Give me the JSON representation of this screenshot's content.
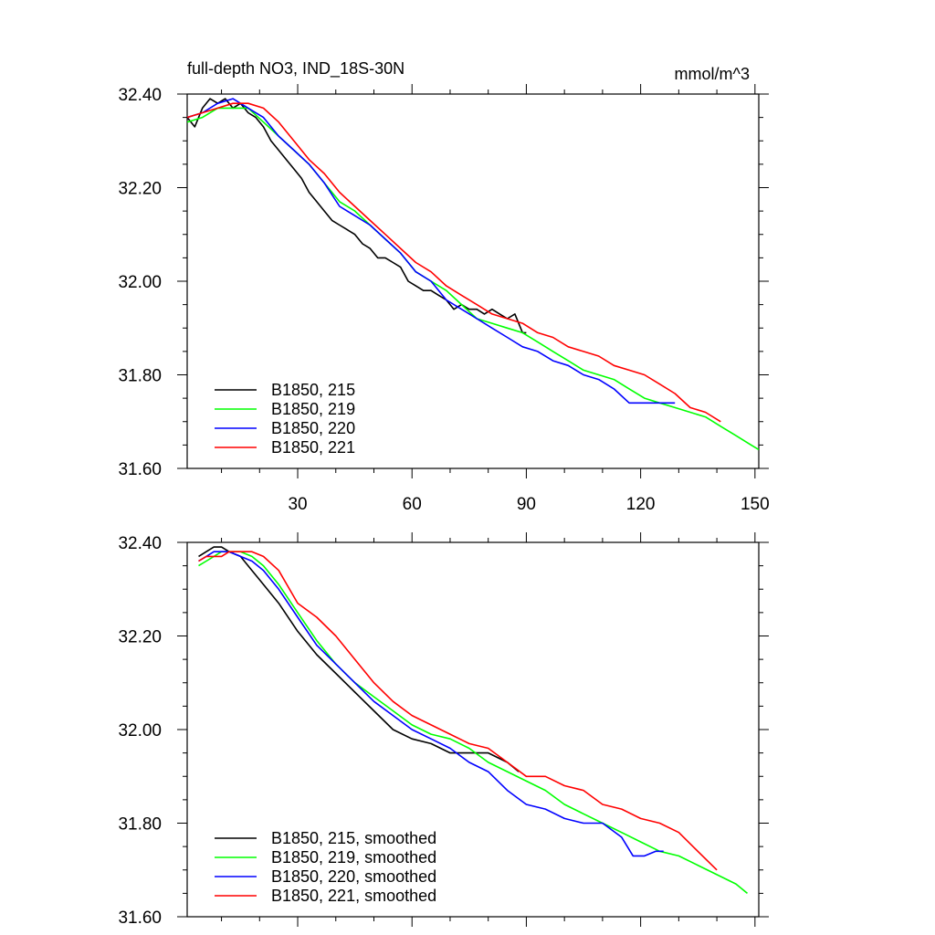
{
  "chart_data": [
    {
      "type": "line",
      "title": "full-depth NO3, IND_18S-30N",
      "units": "mmol/m^3",
      "xlim": [
        1,
        151
      ],
      "ylim": [
        31.6,
        32.4
      ],
      "xticks": [
        30,
        60,
        90,
        120,
        150
      ],
      "xtick_labels": [
        "30",
        "60",
        "90",
        "120",
        "150"
      ],
      "yticks": [
        31.6,
        31.8,
        32.0,
        32.2,
        32.4
      ],
      "ytick_labels": [
        "31.60",
        "31.80",
        "32.00",
        "32.20",
        "32.40"
      ],
      "legend_position": "bottom-left",
      "series": [
        {
          "name": "B1850, 215",
          "color": "#000000",
          "x": [
            1,
            3,
            5,
            7,
            9,
            11,
            13,
            15,
            17,
            19,
            21,
            23,
            25,
            27,
            29,
            31,
            33,
            35,
            37,
            39,
            41,
            43,
            45,
            47,
            49,
            51,
            53,
            55,
            57,
            59,
            61,
            63,
            65,
            67,
            69,
            71,
            73,
            75,
            77,
            79,
            81,
            83,
            85,
            87,
            89,
            90
          ],
          "y": [
            32.35,
            32.33,
            32.37,
            32.39,
            32.38,
            32.39,
            32.37,
            32.38,
            32.36,
            32.35,
            32.33,
            32.3,
            32.28,
            32.26,
            32.24,
            32.22,
            32.19,
            32.17,
            32.15,
            32.13,
            32.12,
            32.11,
            32.1,
            32.08,
            32.07,
            32.05,
            32.05,
            32.04,
            32.03,
            32.0,
            31.99,
            31.98,
            31.98,
            31.97,
            31.96,
            31.94,
            31.95,
            31.94,
            31.94,
            31.93,
            31.94,
            31.93,
            31.92,
            31.93,
            31.89,
            31.89
          ]
        },
        {
          "name": "B1850, 219",
          "color": "#00ff00",
          "x": [
            1,
            5,
            9,
            13,
            17,
            21,
            25,
            29,
            33,
            37,
            41,
            45,
            49,
            53,
            57,
            61,
            65,
            69,
            73,
            77,
            81,
            85,
            89,
            93,
            97,
            101,
            105,
            109,
            113,
            117,
            121,
            125,
            129,
            133,
            137,
            141,
            145,
            149,
            151
          ],
          "y": [
            32.34,
            32.35,
            32.37,
            32.37,
            32.37,
            32.34,
            32.31,
            32.28,
            32.25,
            32.21,
            32.17,
            32.15,
            32.12,
            32.09,
            32.06,
            32.02,
            32.0,
            31.98,
            31.95,
            31.92,
            31.91,
            31.9,
            31.89,
            31.87,
            31.85,
            31.83,
            31.81,
            31.8,
            31.79,
            31.77,
            31.75,
            31.74,
            31.73,
            31.72,
            31.71,
            31.69,
            31.67,
            31.65,
            31.64
          ]
        },
        {
          "name": "B1850, 220",
          "color": "#0000ff",
          "x": [
            1,
            5,
            9,
            13,
            17,
            21,
            25,
            29,
            33,
            37,
            41,
            45,
            49,
            53,
            57,
            61,
            65,
            69,
            73,
            77,
            81,
            85,
            89,
            93,
            97,
            101,
            105,
            109,
            113,
            117,
            121,
            125,
            129
          ],
          "y": [
            32.35,
            32.36,
            32.38,
            32.39,
            32.37,
            32.35,
            32.31,
            32.28,
            32.25,
            32.21,
            32.16,
            32.14,
            32.12,
            32.09,
            32.06,
            32.02,
            32.0,
            31.96,
            31.94,
            31.92,
            31.9,
            31.88,
            31.86,
            31.85,
            31.83,
            31.82,
            31.8,
            31.79,
            31.77,
            31.74,
            31.74,
            31.74,
            31.74
          ]
        },
        {
          "name": "B1850, 221",
          "color": "#ff0000",
          "x": [
            1,
            5,
            9,
            13,
            17,
            21,
            25,
            29,
            33,
            37,
            41,
            45,
            49,
            53,
            57,
            61,
            65,
            69,
            73,
            77,
            81,
            85,
            89,
            93,
            97,
            101,
            105,
            109,
            113,
            117,
            121,
            125,
            129,
            133,
            137,
            141
          ],
          "y": [
            32.35,
            32.36,
            32.37,
            32.38,
            32.38,
            32.37,
            32.34,
            32.3,
            32.26,
            32.23,
            32.19,
            32.16,
            32.13,
            32.1,
            32.07,
            32.04,
            32.02,
            31.99,
            31.97,
            31.95,
            31.93,
            31.92,
            31.91,
            31.89,
            31.88,
            31.86,
            31.85,
            31.84,
            31.82,
            31.81,
            31.8,
            31.78,
            31.76,
            31.73,
            31.72,
            31.7
          ]
        }
      ]
    },
    {
      "type": "line",
      "title": "",
      "units": "",
      "xlim": [
        1,
        151
      ],
      "ylim": [
        31.6,
        32.4
      ],
      "xticks": [
        30,
        60,
        90,
        120,
        150
      ],
      "xtick_labels": [],
      "yticks": [
        31.6,
        31.8,
        32.0,
        32.2,
        32.4
      ],
      "ytick_labels": [
        "31.60",
        "31.80",
        "32.00",
        "32.20",
        "32.40"
      ],
      "legend_position": "bottom-left",
      "series": [
        {
          "name": "B1850, 215, smoothed",
          "color": "#000000",
          "x": [
            4,
            6,
            8,
            10,
            12,
            15,
            18,
            21,
            25,
            30,
            35,
            40,
            45,
            50,
            55,
            60,
            65,
            70,
            75,
            80,
            85,
            88
          ],
          "y": [
            32.37,
            32.38,
            32.39,
            32.39,
            32.38,
            32.37,
            32.34,
            32.31,
            32.27,
            32.21,
            32.16,
            32.12,
            32.08,
            32.04,
            32.0,
            31.98,
            31.97,
            31.95,
            31.95,
            31.95,
            31.93,
            31.91
          ]
        },
        {
          "name": "B1850, 219, smoothed",
          "color": "#00ff00",
          "x": [
            4,
            6,
            8,
            10,
            12,
            15,
            18,
            21,
            25,
            30,
            35,
            40,
            45,
            50,
            55,
            60,
            65,
            70,
            75,
            80,
            85,
            90,
            95,
            100,
            105,
            110,
            115,
            120,
            125,
            130,
            135,
            140,
            145,
            148
          ],
          "y": [
            32.35,
            32.36,
            32.37,
            32.38,
            32.38,
            32.38,
            32.37,
            32.35,
            32.31,
            32.25,
            32.19,
            32.14,
            32.1,
            32.07,
            32.04,
            32.01,
            31.99,
            31.98,
            31.96,
            31.93,
            31.91,
            31.89,
            31.87,
            31.84,
            31.82,
            31.8,
            31.78,
            31.76,
            31.74,
            31.73,
            31.71,
            31.69,
            31.67,
            31.65
          ]
        },
        {
          "name": "B1850, 220, smoothed",
          "color": "#0000ff",
          "x": [
            4,
            6,
            8,
            10,
            12,
            15,
            18,
            21,
            25,
            30,
            35,
            40,
            45,
            50,
            55,
            60,
            65,
            70,
            75,
            80,
            85,
            90,
            95,
            100,
            105,
            110,
            115,
            118,
            121,
            124,
            126
          ],
          "y": [
            32.36,
            32.37,
            32.38,
            32.38,
            32.38,
            32.37,
            32.36,
            32.34,
            32.3,
            32.24,
            32.18,
            32.14,
            32.1,
            32.06,
            32.03,
            32.0,
            31.98,
            31.96,
            31.93,
            31.91,
            31.87,
            31.84,
            31.83,
            31.81,
            31.8,
            31.8,
            31.77,
            31.73,
            31.73,
            31.74,
            31.74
          ]
        },
        {
          "name": "B1850, 221, smoothed",
          "color": "#ff0000",
          "x": [
            4,
            6,
            8,
            10,
            12,
            15,
            18,
            21,
            25,
            30,
            35,
            40,
            45,
            50,
            55,
            60,
            65,
            70,
            75,
            80,
            85,
            90,
            95,
            100,
            105,
            110,
            115,
            120,
            125,
            130,
            135,
            140
          ],
          "y": [
            32.36,
            32.37,
            32.37,
            32.37,
            32.38,
            32.38,
            32.38,
            32.37,
            32.34,
            32.27,
            32.24,
            32.2,
            32.15,
            32.1,
            32.06,
            32.03,
            32.01,
            31.99,
            31.97,
            31.96,
            31.93,
            31.9,
            31.9,
            31.88,
            31.87,
            31.84,
            31.83,
            31.81,
            31.8,
            31.78,
            31.74,
            31.7
          ]
        }
      ]
    }
  ]
}
